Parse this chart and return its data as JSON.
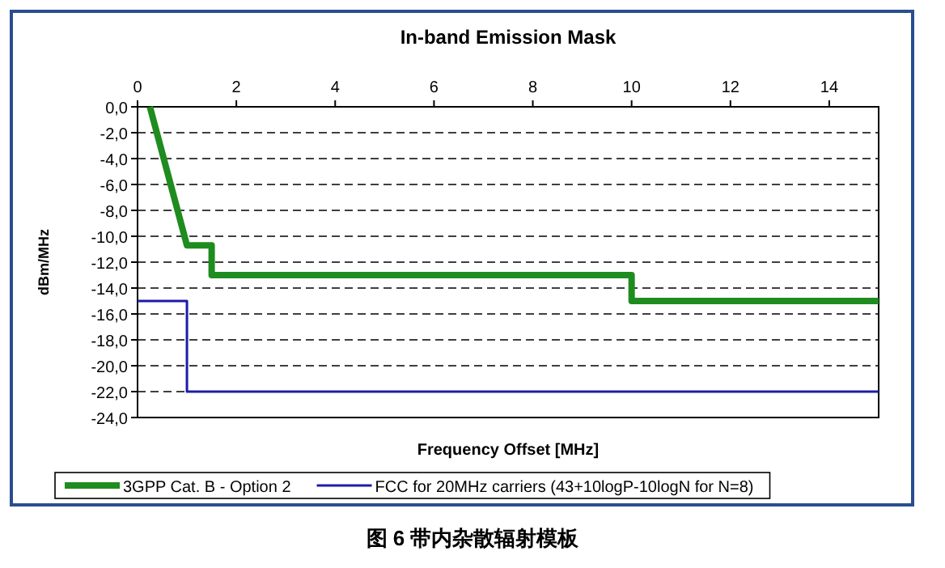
{
  "chart_data": {
    "type": "line",
    "title": "In-band Emission Mask",
    "xlabel": "Frequency Offset [MHz]",
    "ylabel": "dBm/MHz",
    "annotations": [
      "图 6 带内杂散辐射模板"
    ],
    "xlim": [
      0,
      15
    ],
    "xticks": [
      0,
      2,
      4,
      6,
      8,
      10,
      12,
      14
    ],
    "ylim": [
      -24,
      0
    ],
    "yticks": [
      {
        "value": 0,
        "label": "0,0"
      },
      {
        "value": -2,
        "label": "-2,0"
      },
      {
        "value": -4,
        "label": "-4,0"
      },
      {
        "value": -6,
        "label": "-6,0"
      },
      {
        "value": -8,
        "label": "-8,0"
      },
      {
        "value": -10,
        "label": "-10,0"
      },
      {
        "value": -12,
        "label": "-12,0"
      },
      {
        "value": -14,
        "label": "-14,0"
      },
      {
        "value": -16,
        "label": "-16,0"
      },
      {
        "value": -18,
        "label": "-18,0"
      },
      {
        "value": -20,
        "label": "-20,0"
      },
      {
        "value": -22,
        "label": "-22,0"
      },
      {
        "value": -24,
        "label": "-24,0"
      }
    ],
    "grid": "y",
    "legend": "bottom",
    "series": [
      {
        "name": "3GPP Cat. B - Option 2",
        "color": "#1e8c1e",
        "x": [
          0.25,
          1,
          1.5,
          1.5,
          10,
          10,
          15
        ],
        "values": [
          0,
          -10.7,
          -10.7,
          -13,
          -13,
          -15,
          -15
        ]
      },
      {
        "name": "FCC for 20MHz carriers (43+10logP-10logN for N=8)",
        "color": "#1c1ca8",
        "x": [
          0,
          1,
          1,
          15
        ],
        "values": [
          -15,
          -15,
          -22,
          -22
        ]
      }
    ]
  }
}
